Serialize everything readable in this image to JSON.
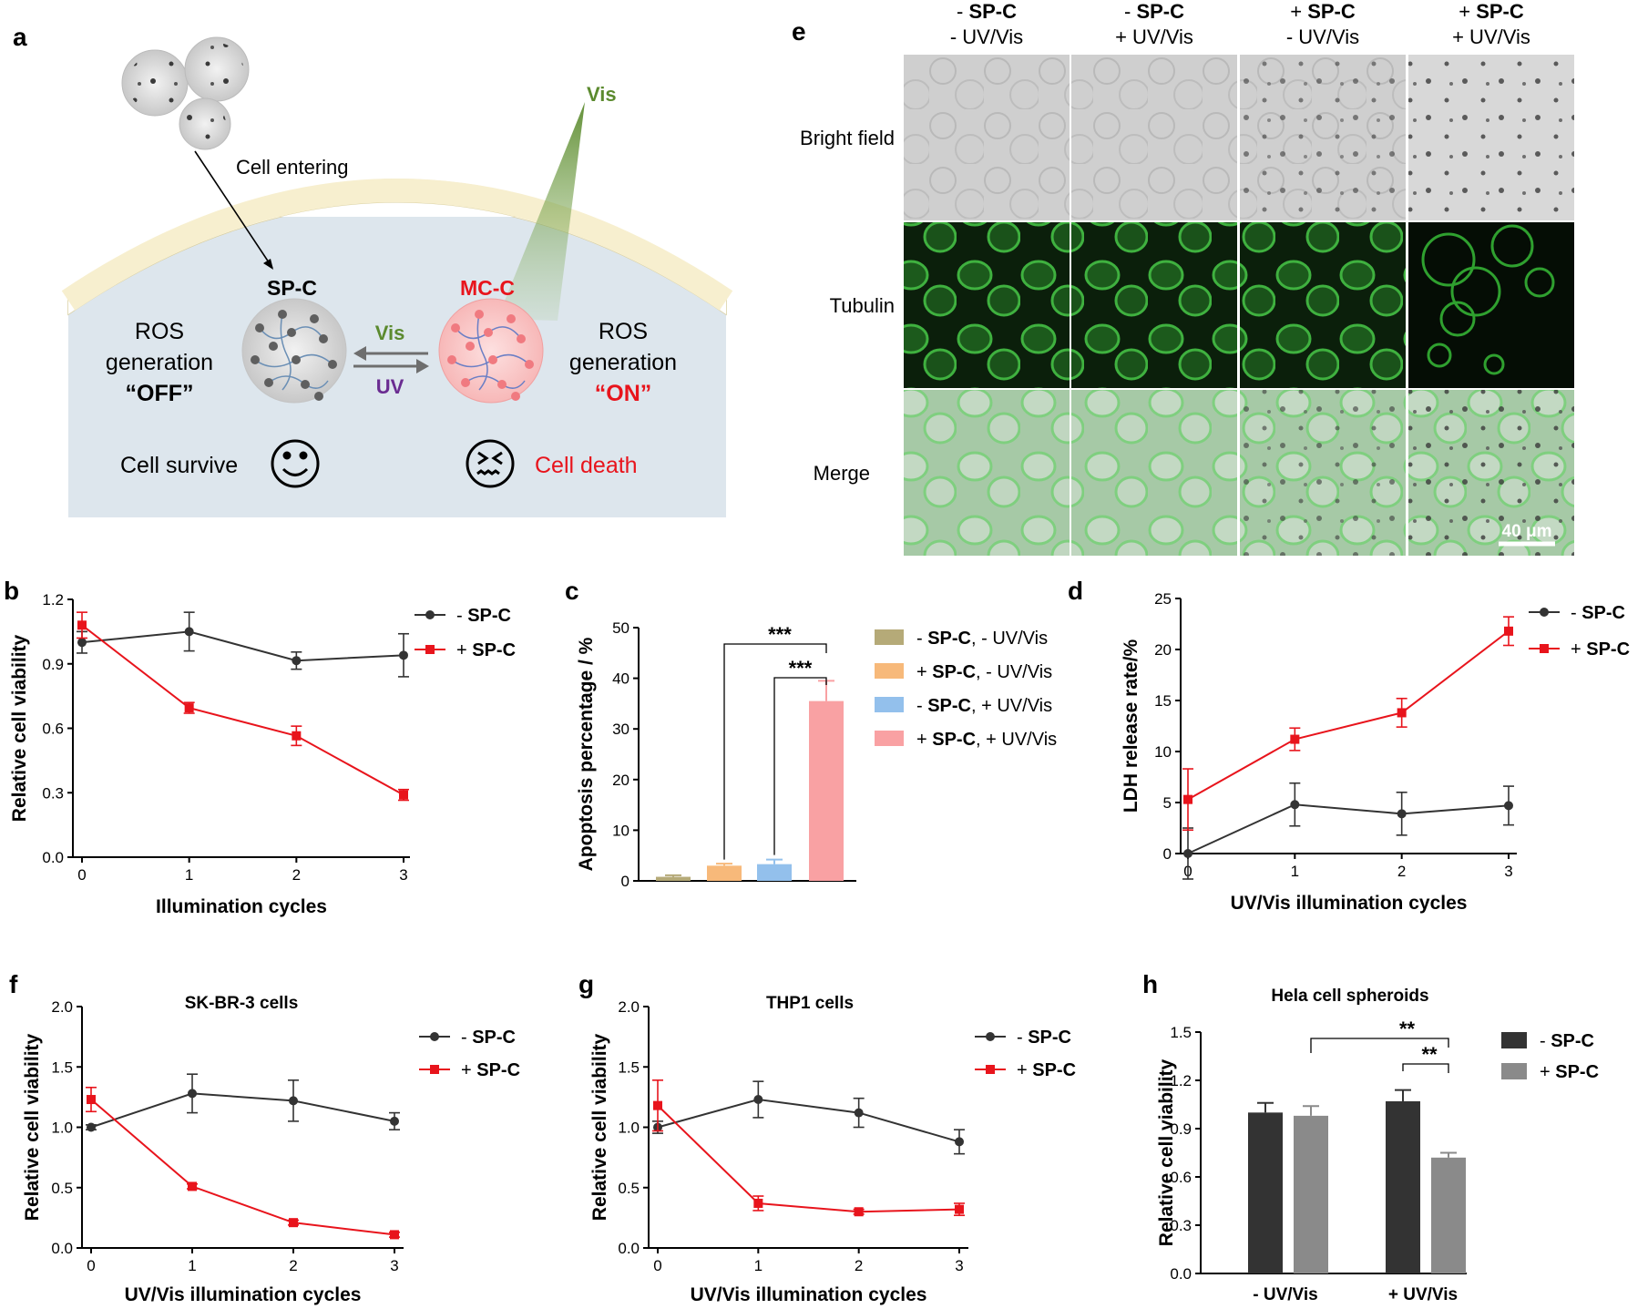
{
  "panels": {
    "a": "a",
    "b": "b",
    "c": "c",
    "d": "d",
    "e": "e",
    "f": "f",
    "g": "g",
    "h": "h"
  },
  "schematic": {
    "cell_entering": "Cell entering",
    "sp_c": "SP-C",
    "mc_c": "MC-C",
    "vis": "Vis",
    "vis_arrow": "Vis",
    "uv_arrow": "UV",
    "ros_left_1": "ROS",
    "ros_left_2": "generation",
    "off": "“OFF”",
    "ros_right_1": "ROS",
    "ros_right_2": "generation",
    "on": "“ON”",
    "cell_survive": "Cell survive",
    "cell_death": "Cell death",
    "colors": {
      "vis_green": "#5b8a2e",
      "red": "#e8141c",
      "purple": "#6a2c91",
      "cell_fill": "#dde6ed",
      "membrane": "#f7efcf"
    }
  },
  "micrographs": {
    "col_headers": [
      {
        "line1_sign": "- ",
        "line1": "SP-C",
        "line2": "- UV/Vis"
      },
      {
        "line1_sign": "- ",
        "line1": "SP-C",
        "line2": "+ UV/Vis"
      },
      {
        "line1_sign": "+ ",
        "line1": "SP-C",
        "line2": "- UV/Vis"
      },
      {
        "line1_sign": "+ ",
        "line1": "SP-C",
        "line2": "+ UV/Vis"
      }
    ],
    "row_labels": [
      "Bright field",
      "Tubulin",
      "Merge"
    ],
    "scale_bar": "40 μm"
  },
  "chart_data": [
    {
      "id": "b",
      "type": "line",
      "xlabel": "Illumination cycles",
      "ylabel": "Relative cell viability",
      "x": [
        0,
        1,
        2,
        3
      ],
      "xticks": [
        "0",
        "1",
        "2",
        "3"
      ],
      "ylim": [
        0,
        1.2
      ],
      "yticks": [
        "0.0",
        "0.3",
        "0.6",
        "0.9",
        "1.2"
      ],
      "series": [
        {
          "name": "- SP-C",
          "values": [
            1.0,
            1.05,
            0.915,
            0.94
          ],
          "errors": [
            0.05,
            0.09,
            0.04,
            0.1
          ],
          "color": "#333333",
          "marker": "circle"
        },
        {
          "name": "+ SP-C",
          "values": [
            1.08,
            0.695,
            0.565,
            0.29
          ],
          "errors": [
            0.06,
            0.025,
            0.045,
            0.025
          ],
          "color": "#e8141c",
          "marker": "square"
        }
      ]
    },
    {
      "id": "c",
      "type": "bar",
      "ylabel": "Apoptosis percentage / %",
      "ylim": [
        0,
        50
      ],
      "yticks": [
        "0",
        "10",
        "20",
        "30",
        "40",
        "50"
      ],
      "series": [
        {
          "name_sign": "- ",
          "name_bold": "SP-C",
          "name_rest": ", - UV/Vis",
          "value": 0.8,
          "error": 0.3,
          "color": "#b5aa78"
        },
        {
          "name_sign": "+ ",
          "name_bold": "SP-C",
          "name_rest": ", - UV/Vis",
          "value": 3.0,
          "error": 0.4,
          "color": "#f7b97a"
        },
        {
          "name_sign": "- ",
          "name_bold": "SP-C",
          "name_rest": ", + UV/Vis",
          "value": 3.3,
          "error": 0.9,
          "color": "#93c0ec"
        },
        {
          "name_sign": "+ ",
          "name_bold": "SP-C",
          "name_rest": ", + UV/Vis",
          "value": 35.5,
          "error": 4.0,
          "color": "#f9a1a3"
        }
      ],
      "significance": [
        "***",
        "***"
      ]
    },
    {
      "id": "d",
      "type": "line",
      "xlabel": "UV/Vis illumination cycles",
      "ylabel": "LDH release rate/%",
      "x": [
        0,
        1,
        2,
        3
      ],
      "xticks": [
        "0",
        "1",
        "2",
        "3"
      ],
      "ylim": [
        0,
        25
      ],
      "yticks": [
        "0",
        "5",
        "10",
        "15",
        "20",
        "25"
      ],
      "series": [
        {
          "name": "- SP-C",
          "values": [
            0.0,
            4.8,
            3.9,
            4.7
          ],
          "errors": [
            2.5,
            2.1,
            2.1,
            1.9
          ],
          "color": "#333333",
          "marker": "circle"
        },
        {
          "name": "+ SP-C",
          "values": [
            5.3,
            11.2,
            13.8,
            21.8
          ],
          "errors": [
            3.0,
            1.1,
            1.4,
            1.4
          ],
          "color": "#e8141c",
          "marker": "square"
        }
      ]
    },
    {
      "id": "f",
      "type": "line",
      "title": "SK-BR-3 cells",
      "xlabel": "UV/Vis illumination cycles",
      "ylabel": "Relative cell viability",
      "x": [
        0,
        1,
        2,
        3
      ],
      "xticks": [
        "0",
        "1",
        "2",
        "3"
      ],
      "ylim": [
        0,
        2.0
      ],
      "yticks": [
        "0.0",
        "0.5",
        "1.0",
        "1.5",
        "2.0"
      ],
      "series": [
        {
          "name": "- SP-C",
          "values": [
            1.0,
            1.28,
            1.22,
            1.05
          ],
          "errors": [
            0.02,
            0.16,
            0.17,
            0.07
          ],
          "color": "#333333",
          "marker": "circle"
        },
        {
          "name": "+ SP-C",
          "values": [
            1.23,
            0.51,
            0.21,
            0.11
          ],
          "errors": [
            0.1,
            0.02,
            0.02,
            0.02
          ],
          "color": "#e8141c",
          "marker": "square"
        }
      ]
    },
    {
      "id": "g",
      "type": "line",
      "title": "THP1 cells",
      "xlabel": "UV/Vis illumination cycles",
      "ylabel": "Relative cell viability",
      "x": [
        0,
        1,
        2,
        3
      ],
      "xticks": [
        "0",
        "1",
        "2",
        "3"
      ],
      "ylim": [
        0,
        2.0
      ],
      "yticks": [
        "0.0",
        "0.5",
        "1.0",
        "1.5",
        "2.0"
      ],
      "series": [
        {
          "name": "- SP-C",
          "values": [
            1.0,
            1.23,
            1.12,
            0.88
          ],
          "errors": [
            0.05,
            0.15,
            0.12,
            0.1
          ],
          "color": "#333333",
          "marker": "circle"
        },
        {
          "name": "+ SP-C",
          "values": [
            1.18,
            0.37,
            0.3,
            0.32
          ],
          "errors": [
            0.21,
            0.06,
            0.02,
            0.05
          ],
          "color": "#e8141c",
          "marker": "square"
        }
      ]
    },
    {
      "id": "h",
      "type": "bar",
      "title": "Hela cell spheroids",
      "ylabel": "Relative cell viability",
      "categories": [
        "- UV/Vis",
        "+ UV/Vis"
      ],
      "ylim": [
        0,
        1.5
      ],
      "yticks": [
        "0.0",
        "0.3",
        "0.6",
        "0.9",
        "1.2",
        "1.5"
      ],
      "series": [
        {
          "name": "- SP-C",
          "values": [
            1.0,
            1.07
          ],
          "errors": [
            0.06,
            0.07
          ],
          "color": "#333333"
        },
        {
          "name": "+ SP-C",
          "values": [
            0.98,
            0.72
          ],
          "errors": [
            0.06,
            0.03
          ],
          "color": "#8a8a8a"
        }
      ],
      "significance": [
        "**",
        "**"
      ]
    }
  ]
}
